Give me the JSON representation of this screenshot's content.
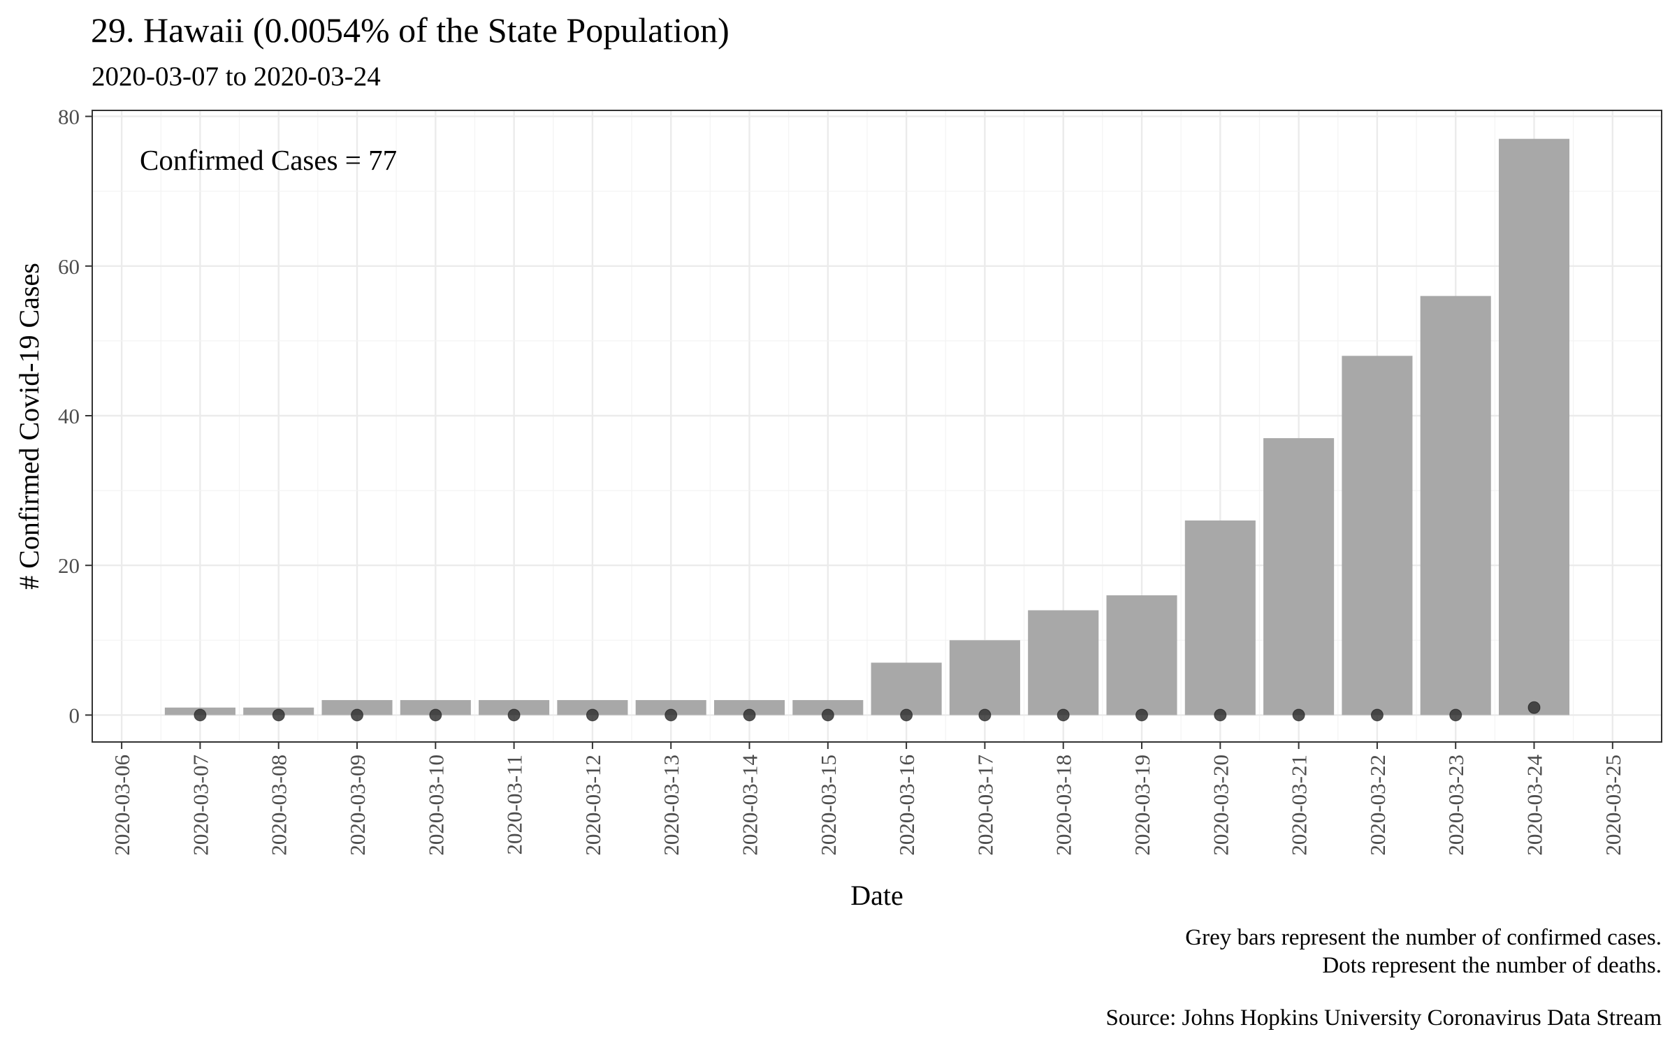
{
  "chart_data": {
    "type": "bar",
    "title": "29. Hawaii (0.0054% of the State Population)",
    "subtitle": "2020-03-07 to 2020-03-24",
    "xlabel": "Date",
    "ylabel": "# Confirmed Covid-19 Cases",
    "annotation": "Confirmed Cases = 77",
    "x_ticks": [
      "2020-03-06",
      "2020-03-07",
      "2020-03-08",
      "2020-03-09",
      "2020-03-10",
      "2020-03-11",
      "2020-03-12",
      "2020-03-13",
      "2020-03-14",
      "2020-03-15",
      "2020-03-16",
      "2020-03-17",
      "2020-03-18",
      "2020-03-19",
      "2020-03-20",
      "2020-03-21",
      "2020-03-22",
      "2020-03-23",
      "2020-03-24",
      "2020-03-25"
    ],
    "y_ticks": [
      "0",
      "20",
      "40",
      "60",
      "80"
    ],
    "xlim": [
      "2020-03-05T15:00",
      "2020-03-25T15:00"
    ],
    "ylim": [
      -3.6,
      80.8
    ],
    "grid": true,
    "series": [
      {
        "name": "Confirmed cases",
        "mark": "bar",
        "color": "#a8a8a8",
        "x": [
          "2020-03-07",
          "2020-03-08",
          "2020-03-09",
          "2020-03-10",
          "2020-03-11",
          "2020-03-12",
          "2020-03-13",
          "2020-03-14",
          "2020-03-15",
          "2020-03-16",
          "2020-03-17",
          "2020-03-18",
          "2020-03-19",
          "2020-03-20",
          "2020-03-21",
          "2020-03-22",
          "2020-03-23",
          "2020-03-24"
        ],
        "values": [
          1,
          1,
          2,
          2,
          2,
          2,
          2,
          2,
          2,
          7,
          10,
          14,
          16,
          26,
          37,
          48,
          56,
          77
        ]
      },
      {
        "name": "Deaths",
        "mark": "dot",
        "color": "#333333",
        "x": [
          "2020-03-07",
          "2020-03-08",
          "2020-03-09",
          "2020-03-10",
          "2020-03-11",
          "2020-03-12",
          "2020-03-13",
          "2020-03-14",
          "2020-03-15",
          "2020-03-16",
          "2020-03-17",
          "2020-03-18",
          "2020-03-19",
          "2020-03-20",
          "2020-03-21",
          "2020-03-22",
          "2020-03-23",
          "2020-03-24"
        ],
        "values": [
          0,
          0,
          0,
          0,
          0,
          0,
          0,
          0,
          0,
          0,
          0,
          0,
          0,
          0,
          0,
          0,
          0,
          1
        ]
      }
    ]
  },
  "captions": {
    "line1": "Grey bars represent the number of confirmed cases.",
    "line2": "Dots represent the number of deaths.",
    "source": "Source: Johns Hopkins University Coronavirus Data Stream"
  }
}
